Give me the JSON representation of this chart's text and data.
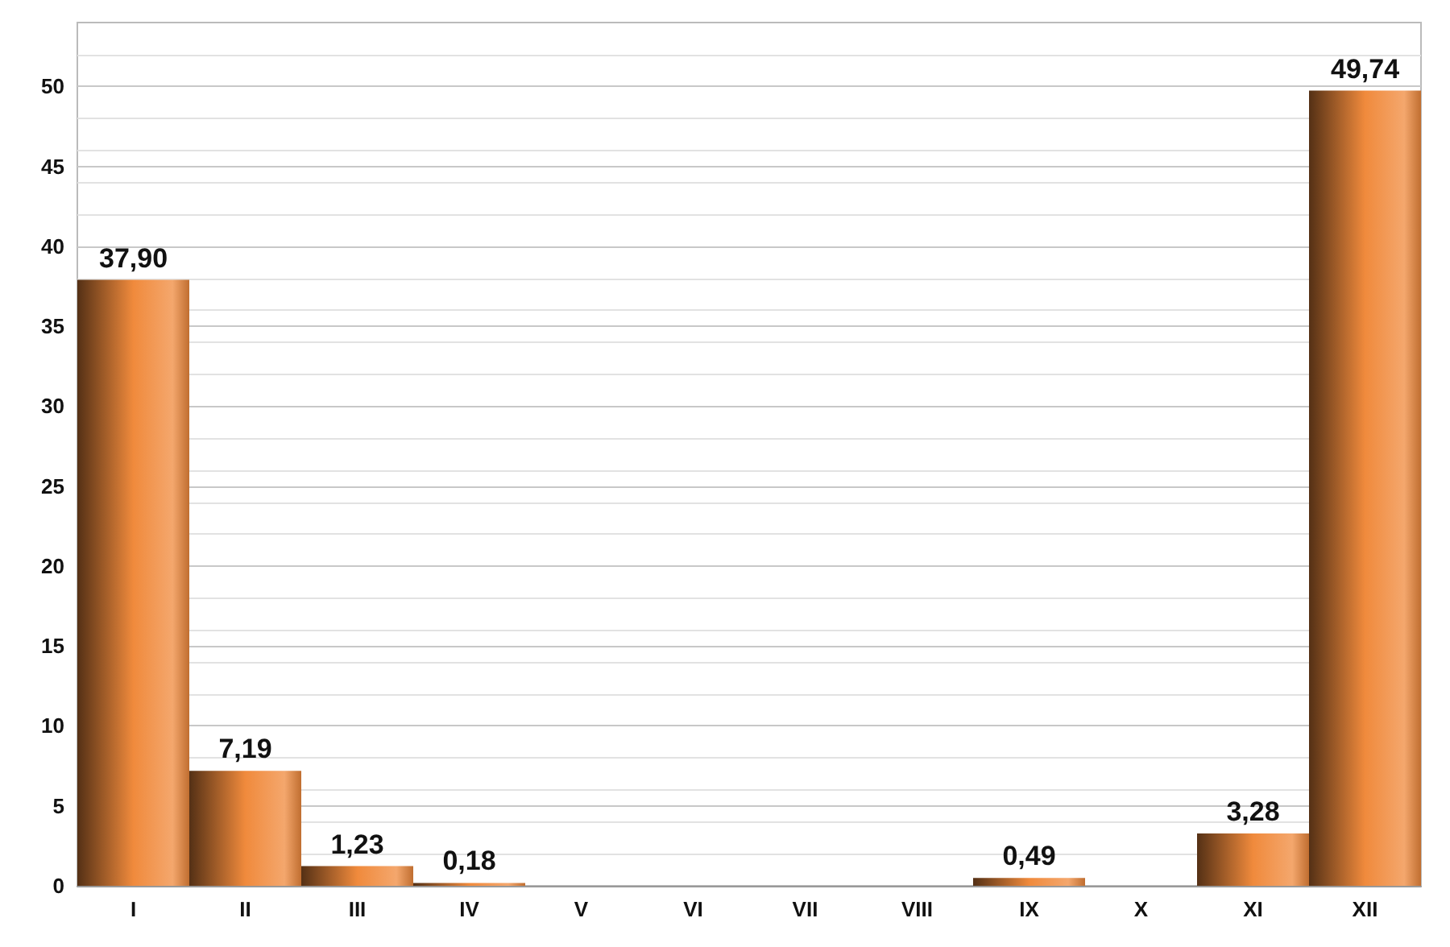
{
  "chart_data": {
    "type": "bar",
    "categories": [
      "I",
      "II",
      "III",
      "IV",
      "V",
      "VI",
      "VII",
      "VIII",
      "IX",
      "X",
      "XI",
      "XII"
    ],
    "values": [
      37.9,
      7.19,
      1.23,
      0.18,
      0,
      0,
      0,
      0,
      0.49,
      0,
      3.28,
      49.74
    ],
    "value_labels": [
      "37,90",
      "7,19",
      "1,23",
      "0,18",
      null,
      null,
      null,
      null,
      "0,49",
      null,
      "3,28",
      "49,74"
    ],
    "color": "#f08a3c",
    "ylim": [
      0,
      54
    ],
    "yticks": [
      0,
      5,
      10,
      15,
      20,
      25,
      30,
      35,
      40,
      45,
      50
    ],
    "grid": "y"
  }
}
